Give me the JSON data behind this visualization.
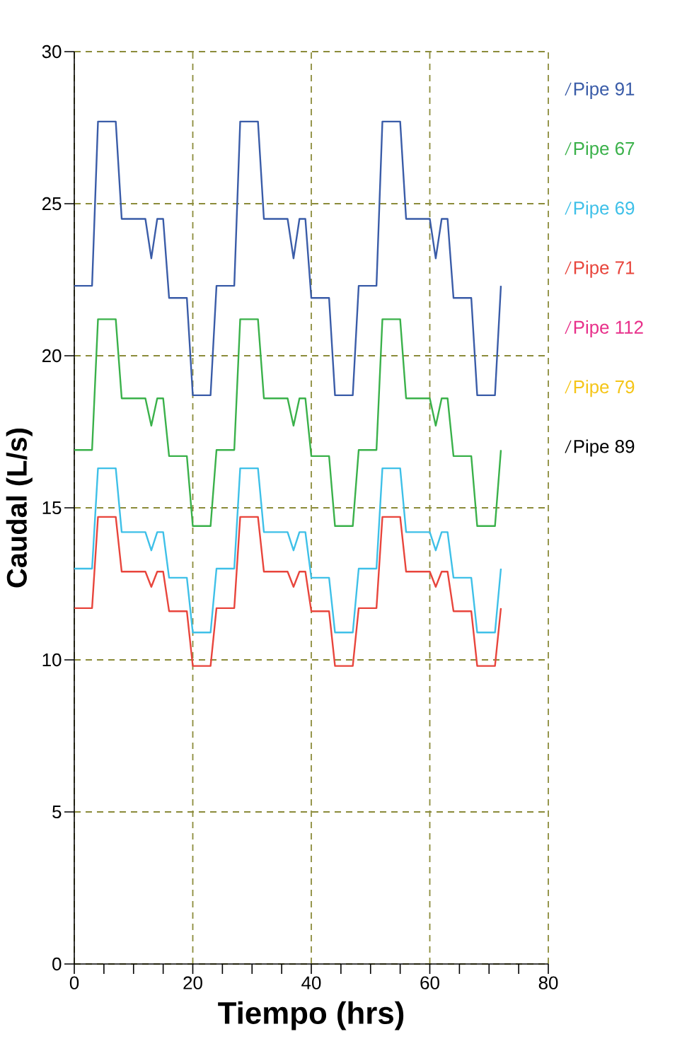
{
  "chart_data": {
    "type": "line",
    "xlabel": "Tiempo (hrs)",
    "ylabel": "Caudal (L/s)",
    "x": [
      0,
      1,
      2,
      3,
      4,
      5,
      6,
      7,
      8,
      9,
      10,
      11,
      12,
      13,
      14,
      15,
      16,
      17,
      18,
      19,
      20,
      21,
      22,
      23,
      24,
      25,
      26,
      27,
      28,
      29,
      30,
      31,
      32,
      33,
      34,
      35,
      36,
      37,
      38,
      39,
      40,
      41,
      42,
      43,
      44,
      45,
      46,
      47,
      48,
      49,
      50,
      51,
      52,
      53,
      54,
      55,
      56,
      57,
      58,
      59,
      60,
      61,
      62,
      63,
      64,
      65,
      66,
      67,
      68,
      69,
      70,
      71,
      72
    ],
    "series": [
      {
        "name": "Pipe 91",
        "color": "#3a5ca8",
        "values": [
          22.3,
          22.3,
          22.3,
          22.3,
          27.7,
          27.7,
          27.7,
          27.7,
          24.5,
          24.5,
          24.5,
          24.5,
          24.5,
          23.2,
          24.5,
          24.5,
          21.9,
          21.9,
          21.9,
          21.9,
          18.7,
          18.7,
          18.7,
          18.7,
          22.3,
          22.3,
          22.3,
          22.3,
          27.7,
          27.7,
          27.7,
          27.7,
          24.5,
          24.5,
          24.5,
          24.5,
          24.5,
          23.2,
          24.5,
          24.5,
          21.9,
          21.9,
          21.9,
          21.9,
          18.7,
          18.7,
          18.7,
          18.7,
          22.3,
          22.3,
          22.3,
          22.3,
          27.7,
          27.7,
          27.7,
          27.7,
          24.5,
          24.5,
          24.5,
          24.5,
          24.5,
          23.2,
          24.5,
          24.5,
          21.9,
          21.9,
          21.9,
          21.9,
          18.7,
          18.7,
          18.7,
          18.7,
          22.3
        ]
      },
      {
        "name": "Pipe 67",
        "color": "#3ab14a",
        "values": [
          16.9,
          16.9,
          16.9,
          16.9,
          21.2,
          21.2,
          21.2,
          21.2,
          18.6,
          18.6,
          18.6,
          18.6,
          18.6,
          17.7,
          18.6,
          18.6,
          16.7,
          16.7,
          16.7,
          16.7,
          14.4,
          14.4,
          14.4,
          14.4,
          16.9,
          16.9,
          16.9,
          16.9,
          21.2,
          21.2,
          21.2,
          21.2,
          18.6,
          18.6,
          18.6,
          18.6,
          18.6,
          17.7,
          18.6,
          18.6,
          16.7,
          16.7,
          16.7,
          16.7,
          14.4,
          14.4,
          14.4,
          14.4,
          16.9,
          16.9,
          16.9,
          16.9,
          21.2,
          21.2,
          21.2,
          21.2,
          18.6,
          18.6,
          18.6,
          18.6,
          18.6,
          17.7,
          18.6,
          18.6,
          16.7,
          16.7,
          16.7,
          16.7,
          14.4,
          14.4,
          14.4,
          14.4,
          16.9
        ]
      },
      {
        "name": "Pipe 69",
        "color": "#3ec0e8",
        "values": [
          13.0,
          13.0,
          13.0,
          13.0,
          16.3,
          16.3,
          16.3,
          16.3,
          14.2,
          14.2,
          14.2,
          14.2,
          14.2,
          13.6,
          14.2,
          14.2,
          12.7,
          12.7,
          12.7,
          12.7,
          10.9,
          10.9,
          10.9,
          10.9,
          13.0,
          13.0,
          13.0,
          13.0,
          16.3,
          16.3,
          16.3,
          16.3,
          14.2,
          14.2,
          14.2,
          14.2,
          14.2,
          13.6,
          14.2,
          14.2,
          12.7,
          12.7,
          12.7,
          12.7,
          10.9,
          10.9,
          10.9,
          10.9,
          13.0,
          13.0,
          13.0,
          13.0,
          16.3,
          16.3,
          16.3,
          16.3,
          14.2,
          14.2,
          14.2,
          14.2,
          14.2,
          13.6,
          14.2,
          14.2,
          12.7,
          12.7,
          12.7,
          12.7,
          10.9,
          10.9,
          10.9,
          10.9,
          13.0
        ]
      },
      {
        "name": "Pipe 71",
        "color": "#e8453c",
        "values": [
          11.7,
          11.7,
          11.7,
          11.7,
          14.7,
          14.7,
          14.7,
          14.7,
          12.9,
          12.9,
          12.9,
          12.9,
          12.9,
          12.4,
          12.9,
          12.9,
          11.6,
          11.6,
          11.6,
          11.6,
          9.8,
          9.8,
          9.8,
          9.8,
          11.7,
          11.7,
          11.7,
          11.7,
          14.7,
          14.7,
          14.7,
          14.7,
          12.9,
          12.9,
          12.9,
          12.9,
          12.9,
          12.4,
          12.9,
          12.9,
          11.6,
          11.6,
          11.6,
          11.6,
          9.8,
          9.8,
          9.8,
          9.8,
          11.7,
          11.7,
          11.7,
          11.7,
          14.7,
          14.7,
          14.7,
          14.7,
          12.9,
          12.9,
          12.9,
          12.9,
          12.9,
          12.4,
          12.9,
          12.9,
          11.6,
          11.6,
          11.6,
          11.6,
          9.8,
          9.8,
          9.8,
          9.8,
          11.7
        ]
      },
      {
        "name": "Pipe 112",
        "color": "#e8308a",
        "values": [
          null,
          null,
          null,
          null,
          null,
          null,
          null,
          null,
          null,
          null,
          null,
          null,
          null,
          null,
          null,
          null,
          null,
          null,
          null,
          null,
          null,
          null,
          null,
          null,
          null,
          null,
          null,
          null,
          null,
          null,
          null,
          null,
          null,
          null,
          null,
          null,
          null,
          null,
          null,
          null,
          null,
          null,
          null,
          null,
          null,
          null,
          null,
          null,
          null,
          null,
          null,
          null,
          null,
          null,
          null,
          null,
          null,
          null,
          null,
          null,
          null,
          null,
          null,
          null,
          null,
          null,
          null,
          null,
          null,
          null,
          null,
          null,
          null
        ]
      },
      {
        "name": "Pipe 79",
        "color": "#f5c518",
        "values": [
          null,
          null,
          null,
          null,
          null,
          null,
          null,
          null,
          null,
          null,
          null,
          null,
          null,
          null,
          null,
          null,
          null,
          null,
          null,
          null,
          null,
          null,
          null,
          null,
          null,
          null,
          null,
          null,
          null,
          null,
          null,
          null,
          null,
          null,
          null,
          null,
          null,
          null,
          null,
          null,
          null,
          null,
          null,
          null,
          null,
          null,
          null,
          null,
          null,
          null,
          null,
          null,
          null,
          null,
          null,
          null,
          null,
          null,
          null,
          null,
          null,
          null,
          null,
          null,
          null,
          null,
          null,
          null,
          null,
          null,
          null,
          null,
          null
        ]
      },
      {
        "name": "Pipe 89",
        "color": "#000000",
        "values": [
          null,
          null,
          null,
          null,
          null,
          null,
          null,
          null,
          null,
          null,
          null,
          null,
          null,
          null,
          null,
          null,
          null,
          null,
          null,
          null,
          null,
          null,
          null,
          null,
          null,
          null,
          null,
          null,
          null,
          null,
          null,
          null,
          null,
          null,
          null,
          null,
          null,
          null,
          null,
          null,
          null,
          null,
          null,
          null,
          null,
          null,
          null,
          null,
          null,
          null,
          null,
          null,
          null,
          null,
          null,
          null,
          null,
          null,
          null,
          null,
          null,
          null,
          null,
          null,
          null,
          null,
          null,
          null,
          null,
          null,
          null,
          null,
          null
        ]
      }
    ],
    "xlim": [
      0,
      80
    ],
    "ylim": [
      0,
      30
    ],
    "xticks": [
      0,
      {
        "value": 5,
        "label": null
      },
      {
        "value": 10,
        "label": null
      },
      {
        "value": 15,
        "label": null
      },
      20,
      {
        "value": 25,
        "label": null
      },
      {
        "value": 30,
        "label": null
      },
      {
        "value": 35,
        "label": null
      },
      40,
      {
        "value": 45,
        "label": null
      },
      {
        "value": 50,
        "label": null
      },
      {
        "value": 55,
        "label": null
      },
      60,
      {
        "value": 65,
        "label": null
      },
      {
        "value": 70,
        "label": null
      },
      {
        "value": 75,
        "label": null
      },
      80
    ],
    "yticks": [
      0,
      5,
      10,
      15,
      20,
      25,
      30
    ],
    "grid": true,
    "legend": "right",
    "marker": "none",
    "line_style": "solid"
  }
}
